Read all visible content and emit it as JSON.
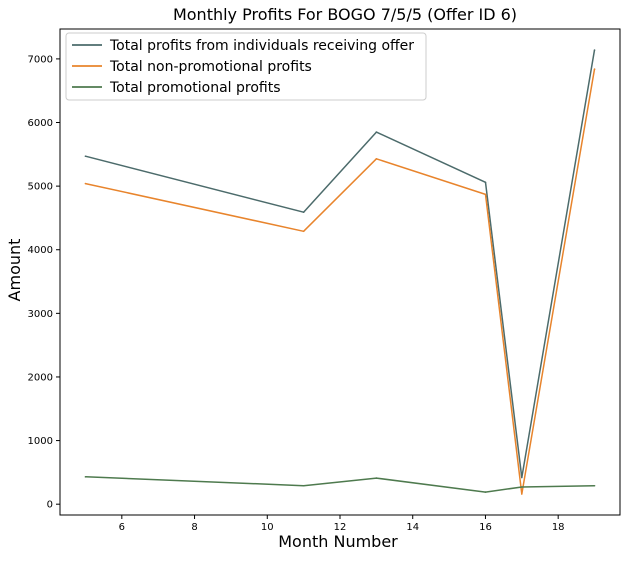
{
  "chart_data": {
    "type": "line",
    "title": "Monthly Profits For BOGO 7/5/5 (Offer ID 6)",
    "xlabel": "Month Number",
    "ylabel": "Amount",
    "xlim": [
      4.3,
      19.7
    ],
    "ylim": [
      -170,
      7470
    ],
    "xticks": [
      6,
      8,
      10,
      12,
      14,
      16,
      18
    ],
    "yticks": [
      0,
      1000,
      2000,
      3000,
      4000,
      5000,
      6000,
      7000
    ],
    "grid": false,
    "legend_position": "top-left",
    "x": [
      5,
      11,
      13,
      16,
      17,
      19
    ],
    "series": [
      {
        "name": "Total profits from individuals receiving offer",
        "color": "#4c6b6b",
        "values": [
          5470,
          4590,
          5850,
          5060,
          420,
          7140
        ]
      },
      {
        "name": "Total non-promotional profits",
        "color": "#e8842c",
        "values": [
          5040,
          4290,
          5430,
          4870,
          160,
          6840
        ]
      },
      {
        "name": "Total promotional profits",
        "color": "#4e7a4e",
        "values": [
          430,
          290,
          410,
          190,
          270,
          290
        ]
      }
    ]
  }
}
